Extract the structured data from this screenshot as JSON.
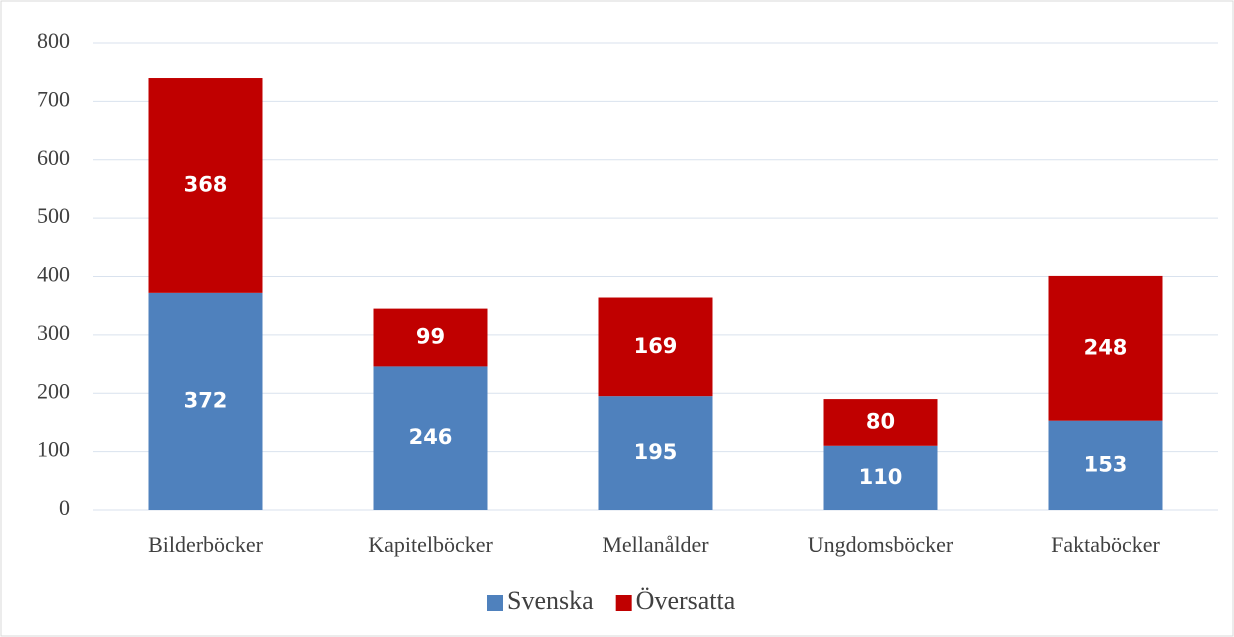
{
  "chart_data": {
    "type": "stacked_bar",
    "categories": [
      "Bilderböcker",
      "Kapitelböcker",
      "Mellanålder",
      "Ungdomsböcker",
      "Faktaböcker"
    ],
    "series": [
      {
        "name": "Svenska",
        "color": "#4f81bd",
        "values": [
          372,
          246,
          195,
          110,
          153
        ]
      },
      {
        "name": "Översatta",
        "color": "#c00000",
        "values": [
          368,
          99,
          169,
          80,
          248
        ]
      }
    ],
    "ylim": [
      0,
      800
    ],
    "yticks": [
      0,
      100,
      200,
      300,
      400,
      500,
      600,
      700,
      800
    ],
    "grid": true,
    "legend": "bottom"
  }
}
